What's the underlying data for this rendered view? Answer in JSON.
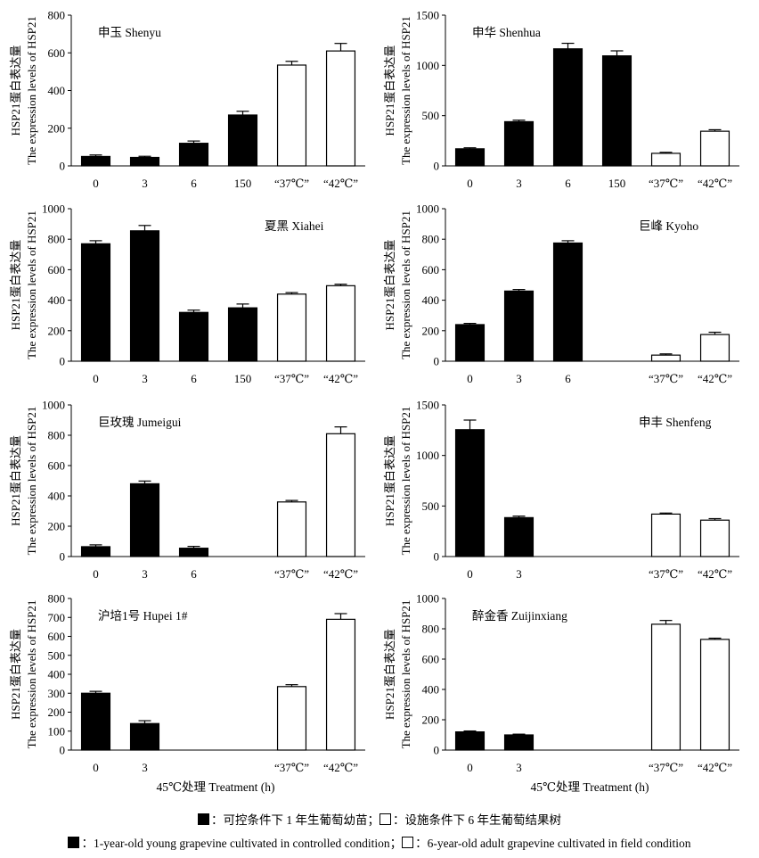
{
  "colors": {
    "filled": "#000000",
    "open": "#ffffff",
    "axis": "#000000"
  },
  "legend": {
    "zh": {
      "filled_label": "：可控条件下 1 年生葡萄幼苗；",
      "open_label": "：设施条件下 6 年生葡萄结果树"
    },
    "en": {
      "filled_label": "：1-year-old young grapevine cultivated in controlled condition；",
      "open_label": "：6-year-old adult grapevine cultivated in field condition"
    }
  },
  "chart_data": [
    {
      "type": "bar",
      "title": "申玉 Shenyu",
      "legend_position": "top-left",
      "categories": [
        "0",
        "3",
        "6",
        "150",
        "“37℃”",
        "“42℃”"
      ],
      "values": [
        50,
        45,
        120,
        270,
        535,
        610
      ],
      "errors": [
        8,
        6,
        12,
        20,
        20,
        40
      ],
      "fill": [
        "filled",
        "filled",
        "filled",
        "filled",
        "open",
        "open"
      ],
      "ylabel": [
        "HSP21蛋白表达量",
        "The expression levels of HSP21"
      ],
      "xlabel": "",
      "ylim": [
        0,
        800
      ],
      "yticks": [
        0,
        200,
        400,
        600,
        800
      ]
    },
    {
      "type": "bar",
      "title": "申华 Shenhua",
      "legend_position": "top-left",
      "categories": [
        "0",
        "3",
        "6",
        "150",
        "“37℃”",
        "“42℃”"
      ],
      "values": [
        170,
        440,
        1165,
        1095,
        125,
        345
      ],
      "errors": [
        10,
        15,
        55,
        50,
        10,
        15
      ],
      "fill": [
        "filled",
        "filled",
        "filled",
        "filled",
        "open",
        "open"
      ],
      "ylabel": [
        "HSP21蛋白表达量",
        "The expression levels of HSP21"
      ],
      "xlabel": "",
      "ylim": [
        0,
        1500
      ],
      "yticks": [
        0,
        500,
        1000,
        1500
      ]
    },
    {
      "type": "bar",
      "title": "夏黑 Xiahei",
      "legend_position": "top-right",
      "categories": [
        "0",
        "3",
        "6",
        "150",
        "“37℃”",
        "“42℃”"
      ],
      "values": [
        770,
        855,
        320,
        350,
        440,
        495
      ],
      "errors": [
        20,
        35,
        15,
        25,
        10,
        10
      ],
      "fill": [
        "filled",
        "filled",
        "filled",
        "filled",
        "open",
        "open"
      ],
      "ylabel": [
        "HSP21蛋白表达量",
        "The expression levels of HSP21"
      ],
      "xlabel": "",
      "ylim": [
        0,
        1000
      ],
      "yticks": [
        0,
        200,
        400,
        600,
        800,
        1000
      ]
    },
    {
      "type": "bar",
      "title": "巨峰 Kyoho",
      "legend_position": "top-right",
      "categories": [
        "0",
        "3",
        "6",
        "",
        "“37℃”",
        "“42℃”"
      ],
      "values": [
        240,
        460,
        775,
        null,
        40,
        175
      ],
      "errors": [
        8,
        10,
        15,
        null,
        8,
        15
      ],
      "fill": [
        "filled",
        "filled",
        "filled",
        "filled",
        "open",
        "open"
      ],
      "ylabel": [
        "HSP21蛋白表达量",
        "The expression levels of HSP21"
      ],
      "xlabel": "",
      "ylim": [
        0,
        1000
      ],
      "yticks": [
        0,
        200,
        400,
        600,
        800,
        1000
      ]
    },
    {
      "type": "bar",
      "title": "巨玫瑰 Jumeigui",
      "legend_position": "top-left",
      "categories": [
        "0",
        "3",
        "6",
        "",
        "“37℃”",
        "“42℃”"
      ],
      "values": [
        65,
        480,
        55,
        null,
        360,
        810
      ],
      "errors": [
        12,
        18,
        12,
        null,
        10,
        45
      ],
      "fill": [
        "filled",
        "filled",
        "filled",
        "filled",
        "open",
        "open"
      ],
      "ylabel": [
        "HSP21蛋白表达量",
        "The expression levels of HSP21"
      ],
      "xlabel": "",
      "ylim": [
        0,
        1000
      ],
      "yticks": [
        0,
        200,
        400,
        600,
        800,
        1000
      ]
    },
    {
      "type": "bar",
      "title": "申丰 Shenfeng",
      "legend_position": "top-right",
      "categories": [
        "0",
        "3",
        "",
        "",
        "“37℃”",
        "“42℃”"
      ],
      "values": [
        1255,
        385,
        null,
        null,
        420,
        360
      ],
      "errors": [
        95,
        15,
        null,
        null,
        10,
        15
      ],
      "fill": [
        "filled",
        "filled",
        "filled",
        "filled",
        "open",
        "open"
      ],
      "ylabel": [
        "HSP21蛋白表达量",
        "The expression levels of HSP21"
      ],
      "xlabel": "",
      "ylim": [
        0,
        1500
      ],
      "yticks": [
        0,
        500,
        1000,
        1500
      ]
    },
    {
      "type": "bar",
      "title": "沪培1号 Hupei 1#",
      "legend_position": "top-left",
      "categories": [
        "0",
        "3",
        "",
        "",
        "“37℃”",
        "“42℃”"
      ],
      "values": [
        300,
        140,
        null,
        null,
        335,
        690
      ],
      "errors": [
        10,
        15,
        null,
        null,
        10,
        30
      ],
      "fill": [
        "filled",
        "filled",
        "filled",
        "filled",
        "open",
        "open"
      ],
      "ylabel": [
        "HSP21蛋白表达量",
        "The expression levels of HSP21"
      ],
      "xlabel": "45℃处理 Treatment (h)",
      "ylim": [
        0,
        800
      ],
      "yticks": [
        0,
        100,
        200,
        300,
        400,
        500,
        600,
        700,
        800
      ]
    },
    {
      "type": "bar",
      "title": "醉金香 Zuijinxiang",
      "legend_position": "top-left",
      "categories": [
        "0",
        "3",
        "",
        "",
        "“37℃”",
        "“42℃”"
      ],
      "values": [
        120,
        100,
        null,
        null,
        830,
        730
      ],
      "errors": [
        6,
        5,
        null,
        null,
        25,
        8
      ],
      "fill": [
        "filled",
        "filled",
        "filled",
        "filled",
        "open",
        "open"
      ],
      "ylabel": [
        "HSP21蛋白表达量",
        "The expression levels of HSP21"
      ],
      "xlabel": "45℃处理 Treatment (h)",
      "ylim": [
        0,
        1000
      ],
      "yticks": [
        0,
        200,
        400,
        600,
        800,
        1000
      ]
    }
  ]
}
